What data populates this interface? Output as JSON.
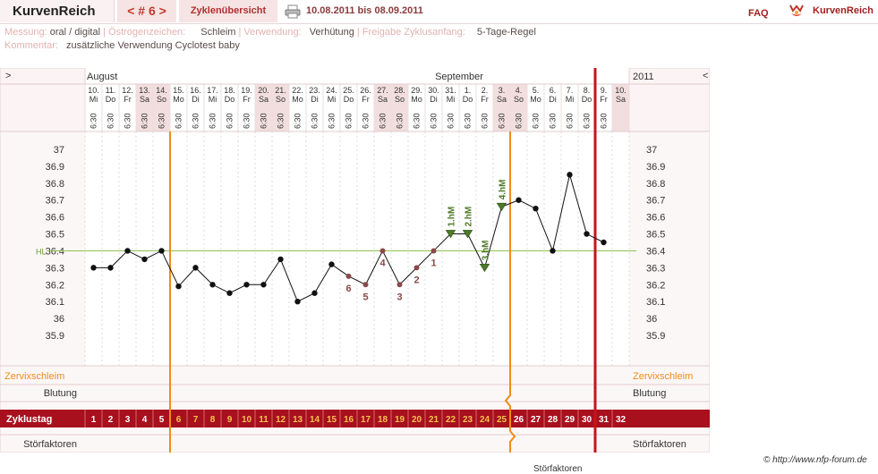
{
  "header": {
    "brand": "KurvenReich",
    "cycle_nav": "< # 6 >",
    "overview_tab": "Zyklenübersicht",
    "date_range": "10.08.2011 bis 08.09.2011",
    "faq": "FAQ",
    "logo_text": "KurvenReich"
  },
  "info": {
    "messung_label": "Messung:",
    "messung_value": "oral / digital",
    "oestrogen_label": "Östrogenzeichen:",
    "oestrogen_value": "Schleim",
    "verwendung_label": "Verwendung:",
    "verwendung_value": "Verhütung",
    "freigabe_label": "Freigabe Zyklusanfang:",
    "freigabe_value": "5-Tage-Regel",
    "kommentar_label": "Kommentar:",
    "kommentar_value": "zusätzliche Verwendung Cyclotest baby"
  },
  "chart_data": {
    "type": "line",
    "month_labels": [
      "August",
      "September"
    ],
    "year": "2011",
    "nav_left": ">",
    "nav_right": "<",
    "dates": [
      "10.",
      "11.",
      "12.",
      "13.",
      "14.",
      "15.",
      "16.",
      "17.",
      "18.",
      "19.",
      "20.",
      "21.",
      "22.",
      "23.",
      "24.",
      "25.",
      "26.",
      "27.",
      "28.",
      "29.",
      "30.",
      "31.",
      "1.",
      "2.",
      "3.",
      "4.",
      "5.",
      "6.",
      "7.",
      "8.",
      "9.",
      "10."
    ],
    "weekdays": [
      "Mi",
      "Do",
      "Fr",
      "Sa",
      "So",
      "Mo",
      "Di",
      "Mi",
      "Do",
      "Fr",
      "Sa",
      "So",
      "Mo",
      "Di",
      "Mi",
      "Do",
      "Fr",
      "Sa",
      "So",
      "Mo",
      "Di",
      "Mi",
      "Do",
      "Fr",
      "Sa",
      "So",
      "Mo",
      "Di",
      "Mi",
      "Do",
      "Fr",
      "Sa"
    ],
    "times": [
      "6:30",
      "6:30",
      "6:30",
      "6:30",
      "6:30",
      "6:30",
      "6:30",
      "6:30",
      "6:30",
      "6:30",
      "6:30",
      "6:30",
      "6:30",
      "6:30",
      "6:30",
      "6:30",
      "6:30",
      "6:30",
      "6:30",
      "6:30",
      "6:30",
      "6:30",
      "6:30",
      "6:30",
      "6:30",
      "6:30",
      "6:30",
      "6:30",
      "6:30",
      "6:30",
      "6:30"
    ],
    "cycle_days": [
      "1",
      "2",
      "3",
      "4",
      "5",
      "6",
      "7",
      "8",
      "9",
      "10",
      "11",
      "12",
      "13",
      "14",
      "15",
      "16",
      "17",
      "18",
      "19",
      "20",
      "21",
      "22",
      "23",
      "24",
      "25",
      "26",
      "27",
      "28",
      "29",
      "30",
      "31",
      "32"
    ],
    "temperatures": [
      36.3,
      36.3,
      36.4,
      36.35,
      36.4,
      36.19,
      36.3,
      36.2,
      36.15,
      36.2,
      36.2,
      36.35,
      36.1,
      36.15,
      36.32,
      36.25,
      36.2,
      36.4,
      36.2,
      36.3,
      36.4,
      36.5,
      36.5,
      36.3,
      36.66,
      36.7,
      36.65,
      36.4,
      36.85,
      36.5,
      36.45
    ],
    "marker_types": [
      "n",
      "n",
      "n",
      "n",
      "n",
      "n",
      "n",
      "n",
      "n",
      "n",
      "n",
      "n",
      "n",
      "n",
      "n",
      "l",
      "l",
      "l",
      "l",
      "l",
      "l",
      "h",
      "h",
      "h",
      "h",
      "n",
      "n",
      "n",
      "n",
      "n",
      "n"
    ],
    "low_labels": [
      {
        "day": 16,
        "text": "6"
      },
      {
        "day": 17,
        "text": "5"
      },
      {
        "day": 18,
        "text": "4"
      },
      {
        "day": 19,
        "text": "3"
      },
      {
        "day": 20,
        "text": "2"
      },
      {
        "day": 21,
        "text": "1"
      }
    ],
    "high_labels": [
      {
        "day": 22,
        "text": "1.hM"
      },
      {
        "day": 23,
        "text": "2.hM"
      },
      {
        "day": 24,
        "text": "3.hM"
      },
      {
        "day": 25,
        "text": "4.hM"
      }
    ],
    "y_ticks": [
      "37",
      "36.9",
      "36.8",
      "36.7",
      "36.6",
      "36.5",
      "36.4",
      "36.3",
      "36.2",
      "36.1",
      "36",
      "35.9"
    ],
    "ylim": [
      35.9,
      37.0
    ],
    "hl": 36.4,
    "hl_label": "HL",
    "row_labels": {
      "zervix": "Zervixschleim",
      "blutung": "Blutung",
      "zyklustag": "Zyklustag",
      "stoer": "Störfaktoren"
    },
    "weekend_days": [
      4,
      5,
      11,
      12,
      18,
      19,
      25,
      26,
      32
    ]
  },
  "footer": {
    "copyright": "© http://www.nfp-forum.de",
    "cutoff": "Störfaktoren"
  },
  "colors": {
    "accent_red": "#a61c1c",
    "cycle_bar": "#a8101e",
    "orange": "#f08c1a",
    "green_marker": "#4f7a28",
    "low_marker": "#8a4a4a",
    "hl_line": "#8fbf4f"
  }
}
